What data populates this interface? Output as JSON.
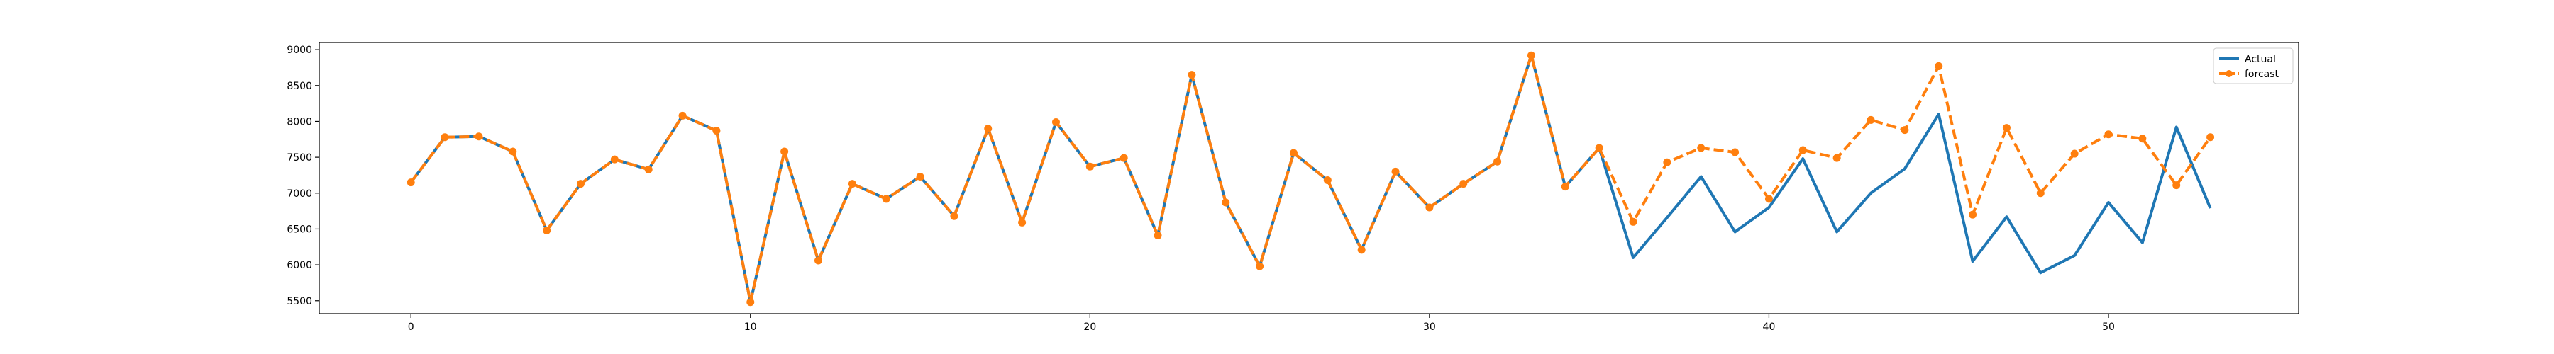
{
  "chart_data": {
    "type": "line",
    "title": "",
    "xlabel": "",
    "ylabel": "",
    "xlim": [
      -2.7,
      55.6
    ],
    "ylim": [
      5320,
      9100
    ],
    "xticks": [
      0,
      10,
      20,
      30,
      40,
      50
    ],
    "yticks": [
      5500,
      6000,
      6500,
      7000,
      7500,
      8000,
      8500,
      9000
    ],
    "grid": false,
    "legend": "top-right",
    "x": [
      0,
      1,
      2,
      3,
      4,
      5,
      6,
      7,
      8,
      9,
      10,
      11,
      12,
      13,
      14,
      15,
      16,
      17,
      18,
      19,
      20,
      21,
      22,
      23,
      24,
      25,
      26,
      27,
      28,
      29,
      30,
      31,
      32,
      33,
      34,
      35,
      36,
      37,
      38,
      39,
      40,
      41,
      42,
      43,
      44,
      45,
      46,
      47,
      48,
      49,
      50,
      51,
      52,
      53
    ],
    "series": [
      {
        "name": "Actual",
        "color": "#1f77b4",
        "style": "solid",
        "values": [
          7150,
          7780,
          7790,
          7580,
          6480,
          7130,
          7470,
          7330,
          8080,
          7870,
          5480,
          7580,
          6060,
          7130,
          6920,
          7230,
          6680,
          7900,
          6590,
          7990,
          7370,
          7490,
          6410,
          8650,
          6870,
          5980,
          7560,
          7180,
          6210,
          7300,
          6800,
          7130,
          7440,
          8920,
          7090,
          7630,
          6100,
          6660,
          7230,
          6460,
          6800,
          7480,
          6460,
          7000,
          7340,
          8100,
          6050,
          6670,
          5890,
          6130,
          6870,
          6310,
          7920,
          6790
        ]
      },
      {
        "name": "forcast",
        "color": "#ff7f0e",
        "style": "dashed",
        "marker": "circle",
        "values": [
          7150,
          7780,
          7790,
          7580,
          6480,
          7130,
          7470,
          7330,
          8080,
          7870,
          5480,
          7580,
          6060,
          7130,
          6920,
          7230,
          6680,
          7900,
          6590,
          7990,
          7370,
          7490,
          6410,
          8650,
          6870,
          5980,
          7560,
          7180,
          6210,
          7300,
          6800,
          7130,
          7440,
          8920,
          7090,
          7630,
          6600,
          7430,
          7630,
          7570,
          6920,
          7600,
          7490,
          8020,
          7880,
          8770,
          6700,
          7910,
          7000,
          7550,
          7820,
          7760,
          7110,
          7780
        ]
      }
    ]
  }
}
